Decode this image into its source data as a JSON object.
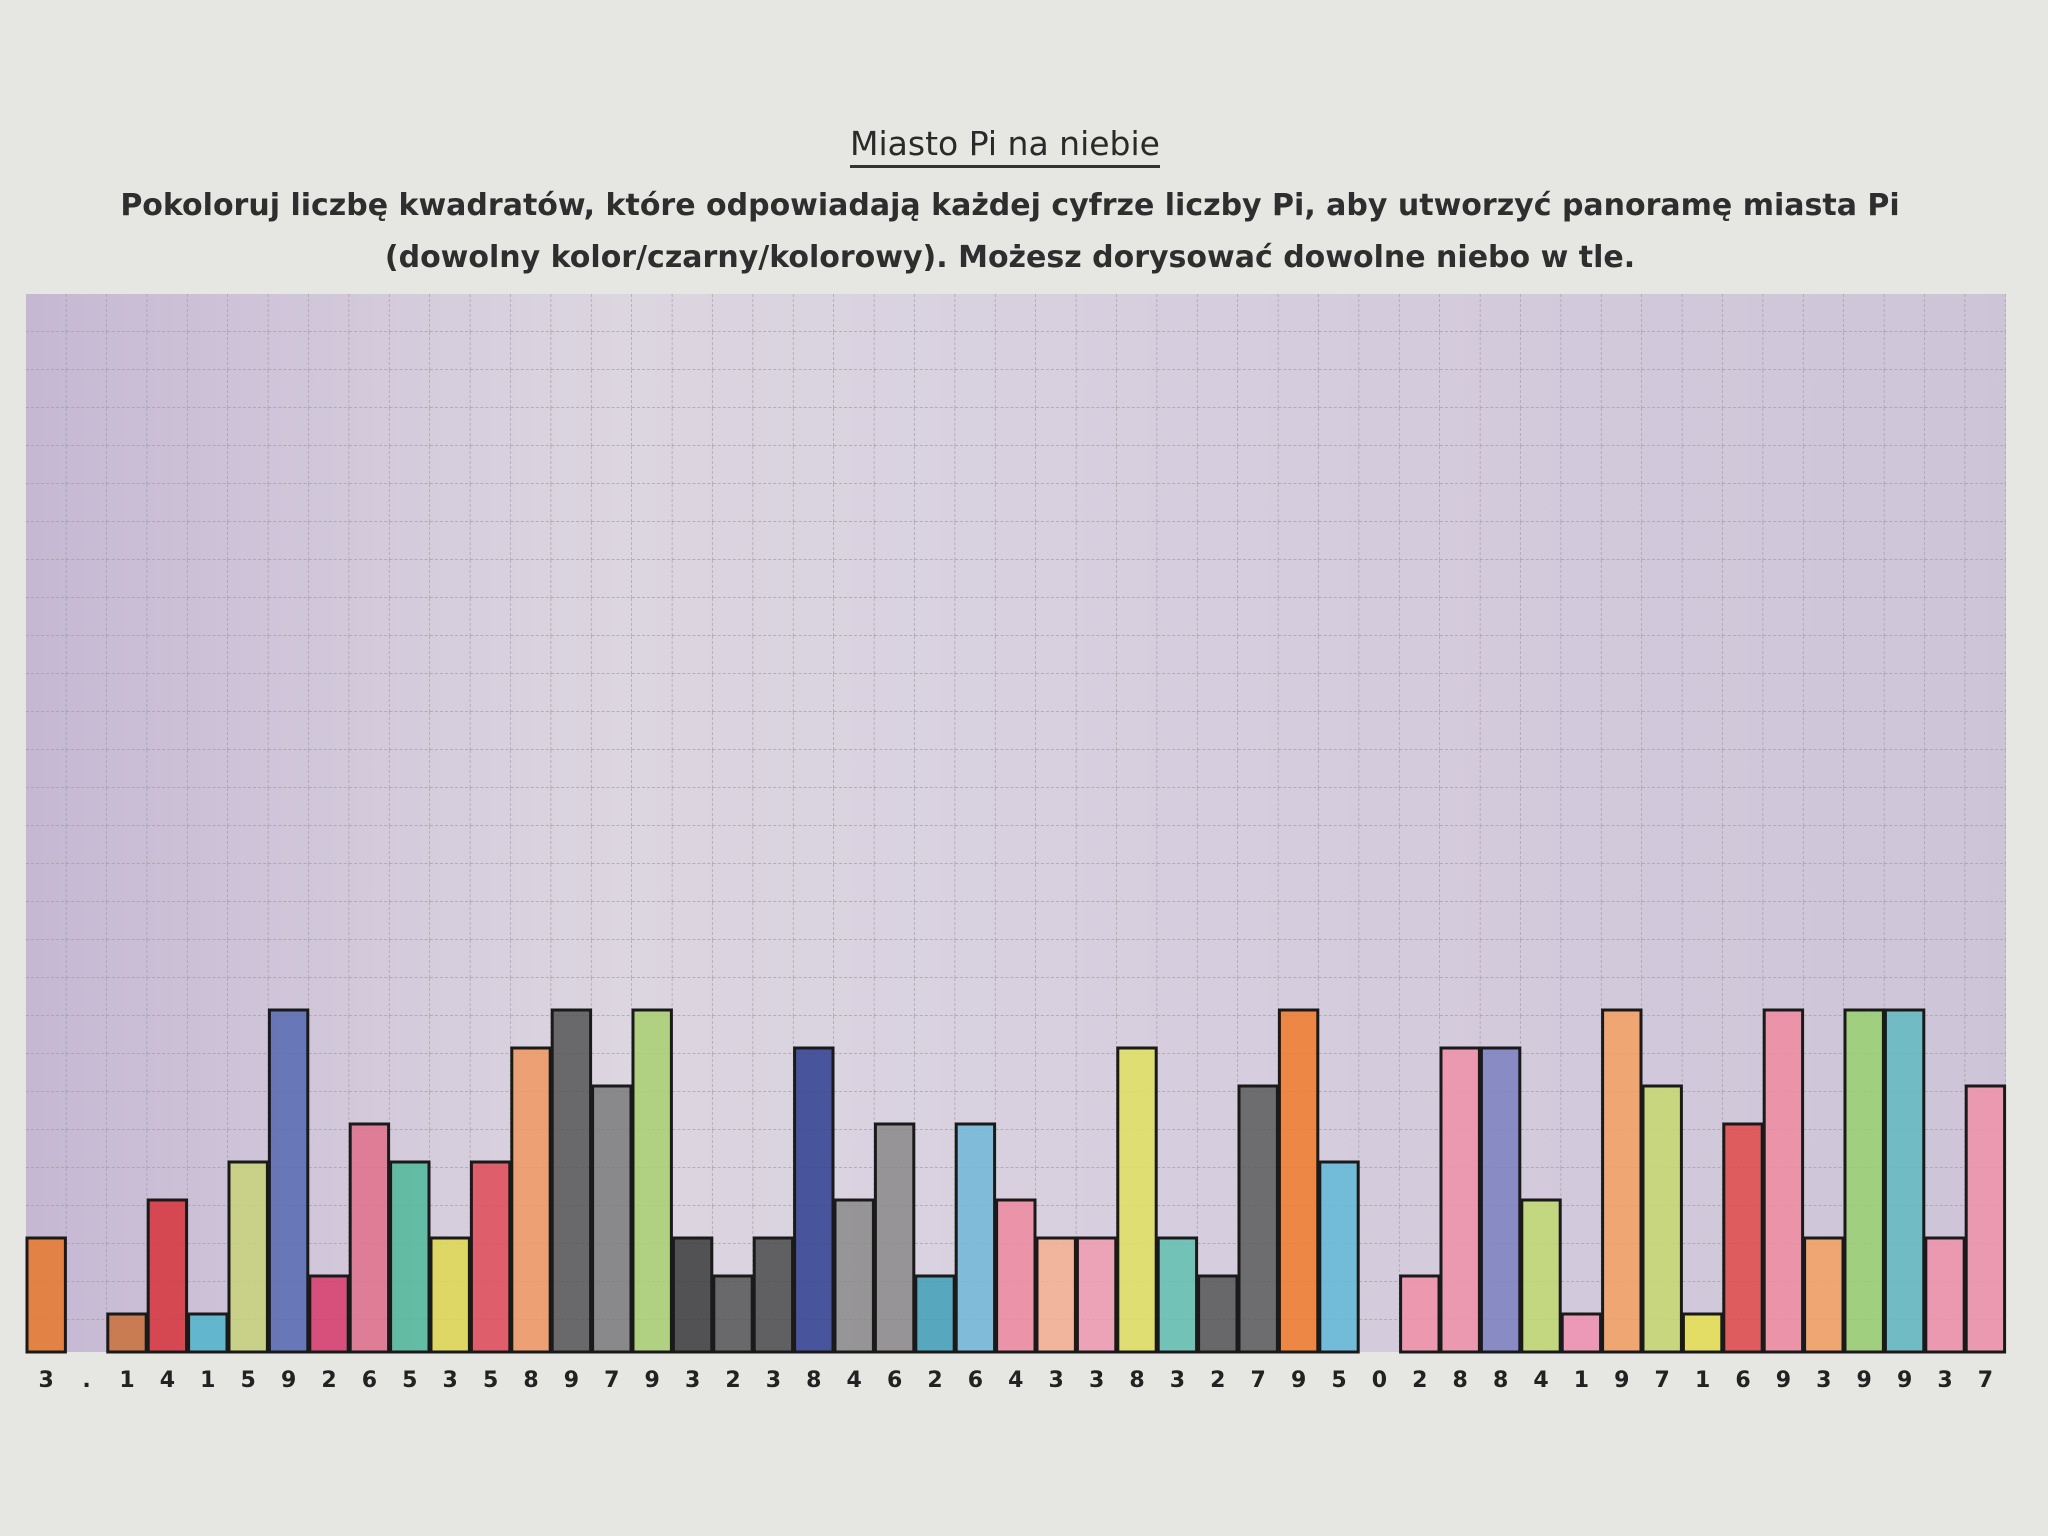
{
  "title": "Miasto Pi na niebie",
  "instructions": "Pokoloruj liczbę kwadratów, które odpowiadają każdej cyfrze liczby Pi, aby utworzyć panoramę miasta Pi (dowolny kolor/czarny/kolorowy). Możesz dorysować dowolne niebo w tle.",
  "chart_data": {
    "type": "bar",
    "categories": [
      "3",
      ".",
      "1",
      "4",
      "1",
      "5",
      "9",
      "2",
      "6",
      "5",
      "3",
      "5",
      "8",
      "9",
      "7",
      "9",
      "3",
      "2",
      "3",
      "8",
      "4",
      "6",
      "2",
      "6",
      "4",
      "3",
      "3",
      "8",
      "3",
      "2",
      "7",
      "9",
      "5",
      "0",
      "2",
      "8",
      "8",
      "4",
      "1",
      "9",
      "7",
      "1",
      "6",
      "9",
      "3",
      "9",
      "9",
      "3",
      "7"
    ],
    "values": [
      3,
      null,
      1,
      4,
      1,
      5,
      9,
      2,
      6,
      5,
      3,
      5,
      8,
      9,
      7,
      9,
      3,
      2,
      3,
      8,
      4,
      6,
      2,
      6,
      4,
      3,
      3,
      8,
      3,
      2,
      7,
      9,
      5,
      0,
      2,
      8,
      8,
      4,
      1,
      9,
      7,
      1,
      6,
      9,
      3,
      9,
      9,
      3,
      7
    ],
    "colors": [
      "#e8782c",
      null,
      "#c9703a",
      "#d8333a",
      "#4fb4cc",
      "#c8d27a",
      "#5668b0",
      "#d83a6a",
      "#e0708a",
      "#4fb89a",
      "#e0d850",
      "#e04a58",
      "#ee9860",
      "#555555",
      "#7a7a7a",
      "#a8d070",
      "#3a3a3a",
      "#555555",
      "#4a4a4a",
      "#2e3e90",
      "#8a8a8a",
      "#8a8a8a",
      "#40a0b8",
      "#70b8d8",
      "#ee8aa0",
      "#f4b090",
      "#f09ab0",
      "#e0e060",
      "#60c0b0",
      "#555555",
      "#5a5a5a",
      "#f07a2a",
      "#60b8d8",
      "#909090",
      "#f090a8",
      "#ee90a8",
      "#7a80c0",
      "#c0d870",
      "#f090b0",
      "#f4a060",
      "#c8d870",
      "#e8e050",
      "#e04848",
      "#f08aa0",
      "#f4a060",
      "#98d070",
      "#60b8c0",
      "#f090a8",
      "#f090a8"
    ]
  }
}
